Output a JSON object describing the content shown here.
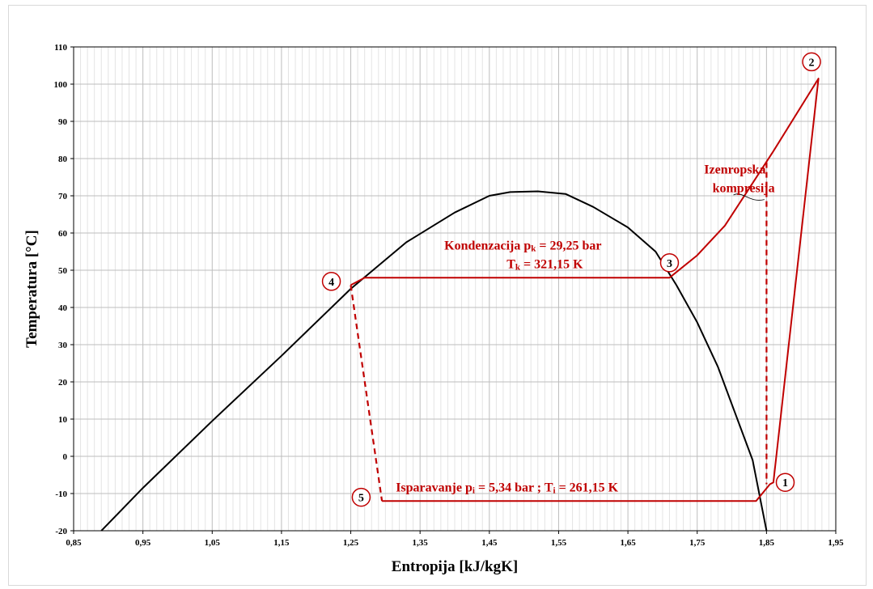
{
  "chart_data": {
    "type": "line",
    "xlabel": "Entropija [kJ/kgK]",
    "ylabel": "Temperatura [°C]",
    "xlim": [
      0.85,
      1.95
    ],
    "ylim": [
      -20,
      110
    ],
    "x_ticks": [
      "0,85",
      "0,95",
      "1,05",
      "1,15",
      "1,25",
      "1,35",
      "1,45",
      "1,55",
      "1,65",
      "1,75",
      "1,85",
      "1,95"
    ],
    "y_ticks": [
      "-20",
      "-10",
      "0",
      "10",
      "20",
      "30",
      "40",
      "50",
      "60",
      "70",
      "80",
      "90",
      "100",
      "110"
    ],
    "grid": true,
    "colors": {
      "saturation": "#000000",
      "cycle": "#c00000",
      "grid": "#d0d0d0"
    },
    "series": [
      {
        "style": "solid",
        "color": "#000000",
        "x": [
          0.89,
          0.95,
          1.05,
          1.15,
          1.25,
          1.33,
          1.4,
          1.45,
          1.48,
          1.52,
          1.56,
          1.6,
          1.65,
          1.69,
          1.72,
          1.75,
          1.78,
          1.8,
          1.83,
          1.85
        ],
        "y": [
          -20,
          -8.5,
          9.5,
          27,
          45,
          57.5,
          65.5,
          70,
          71,
          71.2,
          70.5,
          67,
          61.5,
          55,
          46,
          36,
          24,
          14,
          -1,
          -20
        ]
      },
      {
        "style": "solid",
        "color": "#c00000",
        "x": [
          1.25,
          1.27,
          1.71,
          1.75,
          1.79,
          1.825,
          1.86,
          1.925,
          1.86,
          1.855,
          1.835,
          1.295
        ],
        "y": [
          46,
          48,
          48,
          54,
          62,
          72,
          82,
          101.5,
          -7,
          -7.5,
          -12,
          -12
        ]
      },
      {
        "style": "dashed",
        "color": "#c00000",
        "x": [
          1.25,
          1.295
        ],
        "y": [
          46,
          -12
        ]
      },
      {
        "style": "dashed",
        "color": "#c00000",
        "x": [
          1.85,
          1.85
        ],
        "y": [
          79,
          -7.5
        ]
      }
    ],
    "annotations": [
      {
        "text": "Kondenzacija p",
        "sub": "k",
        "after": " = 29,25 bar",
        "x": 1.385,
        "y": 55.5
      },
      {
        "text": "T",
        "sub": "k",
        "after": " = 321,15 K",
        "x": 1.475,
        "y": 50.5
      },
      {
        "text": "Isparavanje p",
        "sub": "i",
        "after": " = 5,34 bar ; T",
        "sub2": "i",
        "after2": " = 261,15 K",
        "x": 1.315,
        "y": -9.5
      },
      {
        "text": "Izenropska",
        "x": 1.76,
        "y": 76
      },
      {
        "text": "kompresija",
        "x": 1.772,
        "y": 71
      }
    ],
    "points": [
      {
        "label": "1",
        "x": 1.877,
        "y": -7
      },
      {
        "label": "2",
        "x": 1.915,
        "y": 106
      },
      {
        "label": "3",
        "x": 1.71,
        "y": 52
      },
      {
        "label": "4",
        "x": 1.222,
        "y": 47
      },
      {
        "label": "5",
        "x": 1.265,
        "y": -11
      }
    ]
  }
}
